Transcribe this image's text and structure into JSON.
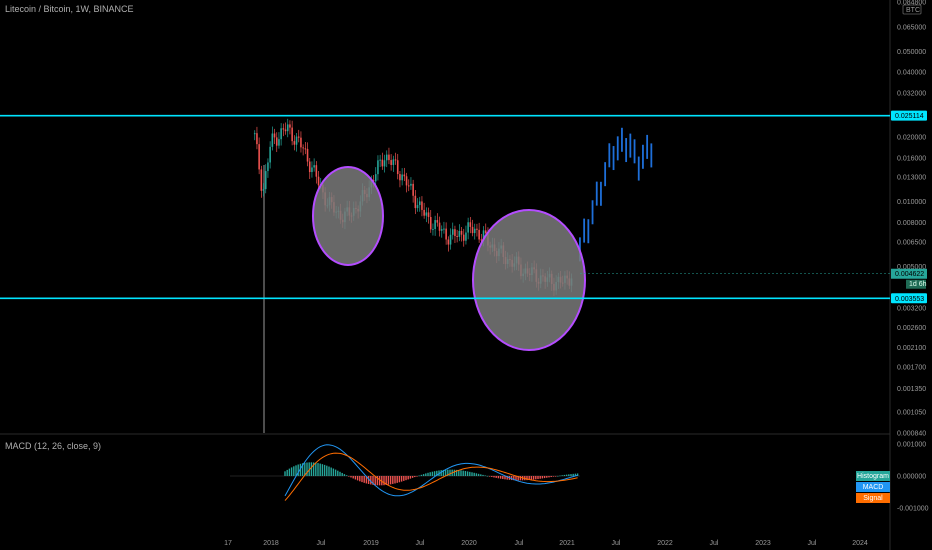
{
  "header": {
    "title": "Litecoin / Bitcoin, 1W, BINANCE",
    "currency_badge": "BTC"
  },
  "macd_panel": {
    "title": "MACD (12, 26, close, 9)",
    "legend": [
      {
        "label": "Histogram",
        "color": "#26a69a"
      },
      {
        "label": "MACD",
        "color": "#2196f3"
      },
      {
        "label": "Signal",
        "color": "#ff6d00"
      }
    ],
    "y_ticks": [
      "0.001000",
      "0.000000",
      "-0.001000"
    ]
  },
  "chart_data": {
    "type": "candlestick",
    "title": "Litecoin / Bitcoin, 1W, BINANCE",
    "y_scale": "log",
    "ylim": [
      0.00084,
      0.0848
    ],
    "y_ticks": [
      "0.084800",
      "0.065000",
      "0.050000",
      "0.040000",
      "0.032000",
      "0.025114",
      "0.020000",
      "0.016000",
      "0.013000",
      "0.010000",
      "0.008000",
      "0.006500",
      "0.005000",
      "0.004622",
      "0.003553",
      "0.003200",
      "0.002600",
      "0.002100",
      "0.001700",
      "0.001350",
      "0.001050",
      "0.000840"
    ],
    "x_ticks": [
      "17",
      "2018",
      "Jul",
      "2019",
      "Jul",
      "2020",
      "Jul",
      "2021",
      "Jul",
      "2022",
      "Jul",
      "2023",
      "Jul",
      "2024"
    ],
    "horizontal_lines": [
      {
        "value": 0.025114,
        "label": "0.025114",
        "color": "#00e5ff"
      },
      {
        "value": 0.003553,
        "label": "0.003553",
        "color": "#00e5ff"
      }
    ],
    "last_price": {
      "value": 0.004622,
      "label": "0.004622",
      "countdown": "1d 6h",
      "color": "#26a69a"
    },
    "ellipses": [
      {
        "center_date": "2018-09",
        "center_value": 0.0098,
        "fill": "#7a7a7a",
        "stroke": "#b44dff"
      },
      {
        "center_date": "2020-09",
        "center_value": 0.0037,
        "fill": "#7a7a7a",
        "stroke": "#b44dff"
      }
    ],
    "price_series": [
      [
        "2017-11",
        0.02
      ],
      [
        "2017-12",
        0.011
      ],
      [
        "2018-01",
        0.019
      ],
      [
        "2018-03",
        0.022
      ],
      [
        "2018-05",
        0.0175
      ],
      [
        "2018-08",
        0.0098
      ],
      [
        "2018-10",
        0.0084
      ],
      [
        "2018-12",
        0.0098
      ],
      [
        "2019-03",
        0.0165
      ],
      [
        "2019-05",
        0.0135
      ],
      [
        "2019-08",
        0.0085
      ],
      [
        "2019-11",
        0.0068
      ],
      [
        "2020-02",
        0.0075
      ],
      [
        "2020-05",
        0.0058
      ],
      [
        "2020-08",
        0.0048
      ],
      [
        "2020-11",
        0.0043
      ],
      [
        "2021-01",
        0.0042
      ],
      [
        "2021-02",
        0.0046
      ]
    ],
    "projection_series": [
      [
        "2021-03",
        0.006
      ],
      [
        "2021-05",
        0.01
      ],
      [
        "2021-07",
        0.017
      ],
      [
        "2021-09",
        0.019
      ],
      [
        "2021-10",
        0.015
      ],
      [
        "2021-12",
        0.018
      ]
    ],
    "projection_color": "#1e6fd9",
    "series_colors": {
      "up": "#26a69a",
      "down": "#ef5350",
      "macd": "#2196f3",
      "signal": "#ff6d00"
    }
  }
}
